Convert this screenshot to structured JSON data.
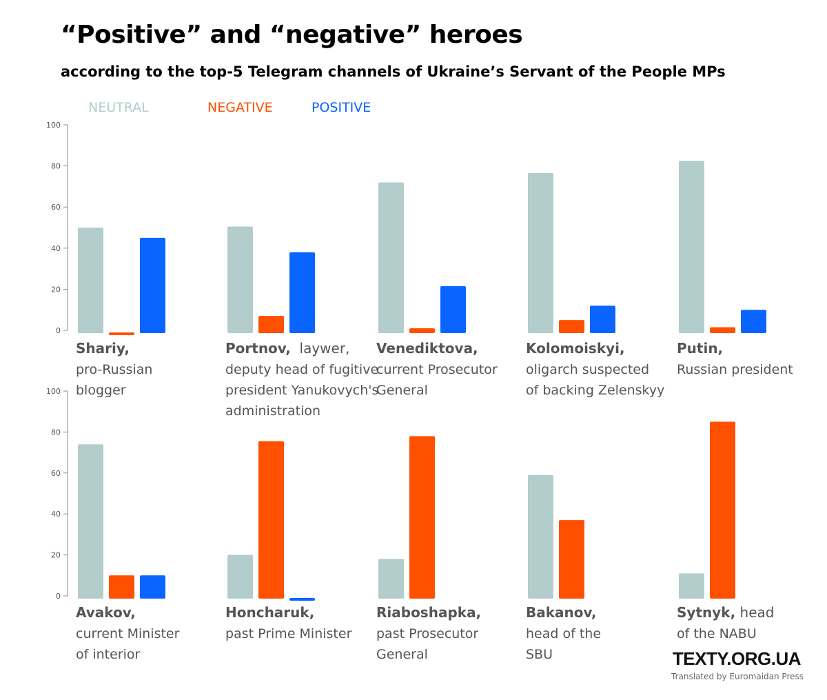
{
  "title": "“Positive” and “negative” heroes",
  "subtitle": "according to the top-5 Telegram channels  of Ukraine’s Servant of the People MPs",
  "legend": [
    {
      "label": "NEUTRAL",
      "color": "#b3cccc"
    },
    {
      "label": "NEGATIVE",
      "color": "#ff5000"
    },
    {
      "label": "POSITIVE",
      "color": "#0a64ff"
    }
  ],
  "colors": {
    "neutral": "#b3cccc",
    "negative": "#ff5000",
    "positive": "#0a64ff",
    "axis": "#888888",
    "tick_text": "#555555",
    "label_text": "#555555"
  },
  "chart_data": {
    "type": "bar",
    "title": "“Positive” and “negative” heroes",
    "subtitle": "according to the top-5 Telegram channels  of Ukraine’s Servant of the People MPs",
    "series_names": [
      "NEUTRAL",
      "NEGATIVE",
      "POSITIVE"
    ],
    "ylim": [
      0,
      100
    ],
    "yticks": [
      "100",
      "80",
      "60",
      "40",
      "20",
      "0"
    ],
    "panels": [
      {
        "name": "Shariy,",
        "desc": [
          "pro-Russian",
          "blogger"
        ],
        "values": [
          50,
          -1,
          45
        ]
      },
      {
        "name": "Portnov,",
        "name_suffix": "  laywer,",
        "desc": [
          "deputy head of fugitive",
          "president Yanukovych's",
          "administration"
        ],
        "values": [
          50.5,
          7,
          38
        ]
      },
      {
        "name": "Venediktova,",
        "desc": [
          "current Prosecutor",
          "General"
        ],
        "values": [
          72,
          1,
          21.5
        ]
      },
      {
        "name": "Kolomoiskyi,",
        "desc": [
          "oligarch suspected",
          "of backing Zelenskyy"
        ],
        "values": [
          76.5,
          5,
          12
        ]
      },
      {
        "name": "Putin,",
        "desc": [
          "Russian president"
        ],
        "values": [
          82.5,
          1.5,
          10
        ]
      },
      {
        "name": "Avakov,",
        "desc": [
          "current Minister",
          "of interior"
        ],
        "values": [
          74,
          10,
          10
        ]
      },
      {
        "name": "Honcharuk,",
        "desc": [
          "past Prime Minister"
        ],
        "values": [
          20,
          75.5,
          -1
        ]
      },
      {
        "name": "Riaboshapka,",
        "desc": [
          "past Prosecutor",
          "General"
        ],
        "values": [
          18,
          78,
          null
        ]
      },
      {
        "name": "Bakanov,",
        "desc": [
          "head of the",
          "SBU"
        ],
        "values": [
          59,
          37,
          null
        ]
      },
      {
        "name": "Sytnyk,",
        "name_suffix": " head",
        "desc": [
          "of the NABU"
        ],
        "values": [
          11,
          85,
          null
        ]
      }
    ]
  },
  "footer": {
    "brand": "TEXTY.ORG.UA",
    "credit": "Translated by Euromaidan Press"
  }
}
